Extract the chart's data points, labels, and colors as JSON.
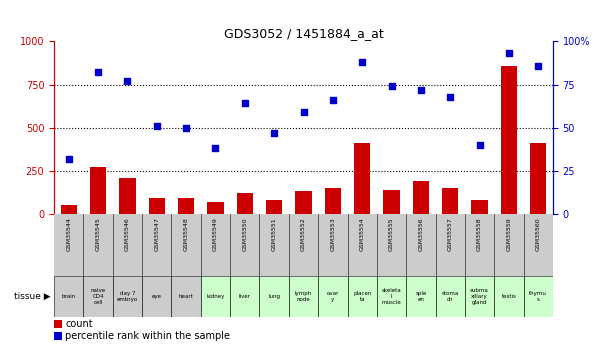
{
  "title": "GDS3052 / 1451884_a_at",
  "samples": [
    "GSM35544",
    "GSM35545",
    "GSM35546",
    "GSM35547",
    "GSM35548",
    "GSM35549",
    "GSM35550",
    "GSM35551",
    "GSM35552",
    "GSM35553",
    "GSM35554",
    "GSM35555",
    "GSM35556",
    "GSM35557",
    "GSM35558",
    "GSM35559",
    "GSM35560"
  ],
  "tissues": [
    "brain",
    "naive\nCD4\ncell",
    "day 7\nembryо",
    "eye",
    "heart",
    "kidney",
    "liver",
    "lung",
    "lymph\nnode",
    "ovar\ny",
    "placen\nta",
    "skeleta\nl\nmuscle",
    "sple\nen",
    "stoma\nch",
    "subma\nxillary\ngland",
    "testis",
    "thymu\ns"
  ],
  "tissue_bg": [
    "#cccccc",
    "#cccccc",
    "#cccccc",
    "#cccccc",
    "#cccccc",
    "#ccffcc",
    "#ccffcc",
    "#ccffcc",
    "#ccffcc",
    "#ccffcc",
    "#ccffcc",
    "#ccffcc",
    "#ccffcc",
    "#ccffcc",
    "#ccffcc",
    "#ccffcc",
    "#ccffcc"
  ],
  "counts": [
    50,
    270,
    210,
    90,
    90,
    70,
    120,
    80,
    130,
    150,
    410,
    140,
    190,
    150,
    80,
    860,
    410
  ],
  "percentiles": [
    32,
    82,
    77,
    51,
    50,
    38,
    64,
    47,
    59,
    66,
    88,
    74,
    72,
    68,
    40,
    93,
    86
  ],
  "count_color": "#cc0000",
  "percentile_color": "#0000cc",
  "bar_width": 0.55,
  "ylim_left": [
    0,
    1000
  ],
  "ylim_right": [
    0,
    100
  ],
  "yticks_left": [
    0,
    250,
    500,
    750,
    1000
  ],
  "yticks_right": [
    0,
    25,
    50,
    75,
    100
  ],
  "grid_lines": [
    250,
    500,
    750
  ],
  "bg_color": "#ffffff"
}
